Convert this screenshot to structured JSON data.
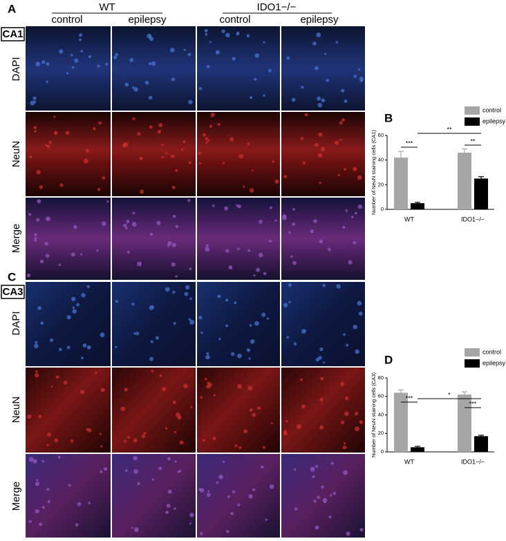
{
  "panel_labels": {
    "a": "A",
    "b": "B",
    "c": "C",
    "d": "D"
  },
  "group_labels": [
    "WT",
    "IDO1−/−"
  ],
  "condition_labels": [
    "control",
    "epilepsy",
    "control",
    "epilepsy"
  ],
  "region_labels": [
    "CA1",
    "CA3"
  ],
  "stain_labels": [
    "DAPI",
    "NeuN",
    "Merge"
  ],
  "chart_data": [
    {
      "type": "bar",
      "y_label": "Number of NeuN staining cells (CA1)",
      "categories": [
        "WT",
        "IDO1−/−"
      ],
      "series": [
        {
          "name": "control",
          "color": "#a6a6a8",
          "values": [
            42,
            46
          ],
          "errors": [
            5,
            3
          ]
        },
        {
          "name": "epilepsy",
          "color": "#000000",
          "values": [
            5,
            25
          ],
          "errors": [
            0.7,
            1.5
          ]
        }
      ],
      "ylim": [
        0,
        60
      ],
      "yticks": [
        0,
        20,
        40,
        60
      ],
      "annotations": [
        "***",
        "**",
        "**"
      ]
    },
    {
      "type": "bar",
      "y_label": "Number of NeuN staining cells (CA3)",
      "categories": [
        "WT",
        "IDO1−/−"
      ],
      "series": [
        {
          "name": "control",
          "color": "#a6a6a8",
          "values": [
            64,
            62
          ],
          "errors": [
            3,
            3
          ]
        },
        {
          "name": "epilepsy",
          "color": "#000000",
          "values": [
            5,
            17
          ],
          "errors": [
            1,
            1
          ]
        }
      ],
      "ylim": [
        0,
        80
      ],
      "yticks": [
        0,
        20,
        40,
        60,
        80
      ],
      "annotations": [
        "***",
        "*",
        "***"
      ]
    }
  ]
}
